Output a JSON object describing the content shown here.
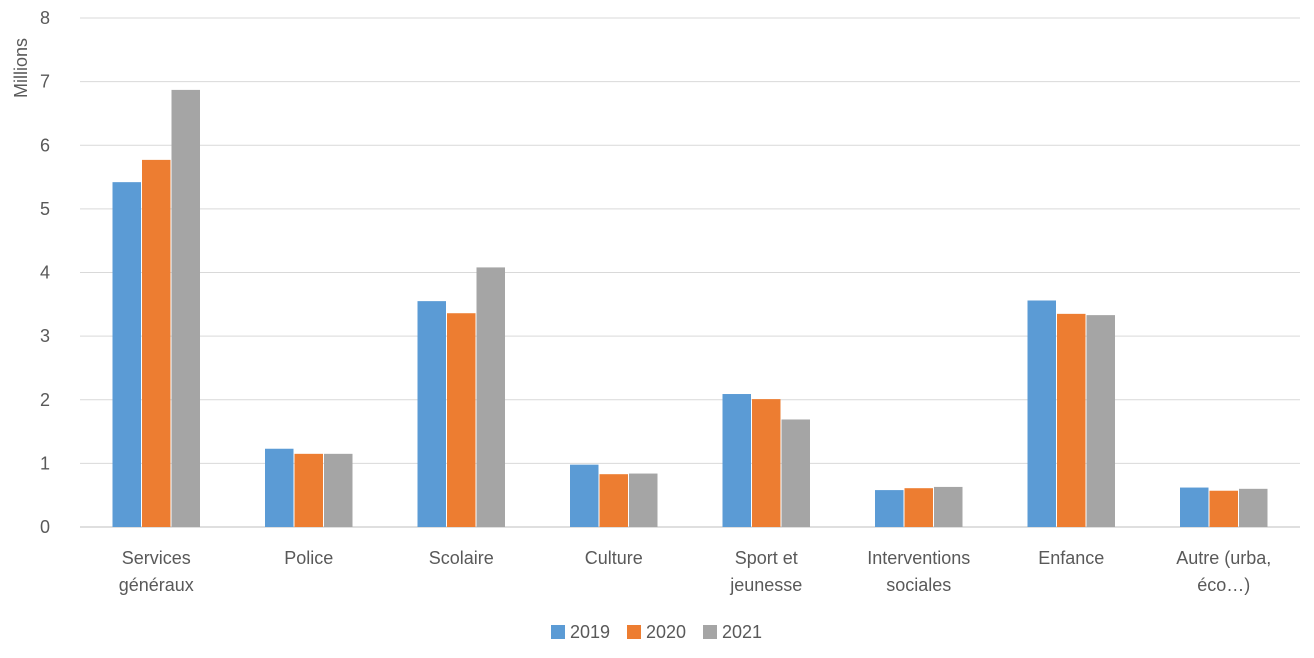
{
  "chart_data": {
    "type": "bar",
    "ylabel": "Millions",
    "ylim": [
      0,
      8
    ],
    "yticks": [
      0,
      1,
      2,
      3,
      4,
      5,
      6,
      7,
      8
    ],
    "grid": true,
    "legend_position": "bottom",
    "categories": [
      [
        "Services",
        "généraux"
      ],
      [
        "Police"
      ],
      [
        "Scolaire"
      ],
      [
        "Culture"
      ],
      [
        "Sport et",
        "jeunesse"
      ],
      [
        "Interventions",
        "sociales"
      ],
      [
        "Enfance"
      ],
      [
        "Autre (urba,",
        "éco…)"
      ]
    ],
    "series": [
      {
        "name": "2019",
        "color": "#5B9BD5",
        "values": [
          5.42,
          1.23,
          3.55,
          0.98,
          2.09,
          0.58,
          3.56,
          0.62
        ]
      },
      {
        "name": "2020",
        "color": "#ED7D31",
        "values": [
          5.77,
          1.15,
          3.36,
          0.83,
          2.01,
          0.61,
          3.35,
          0.57
        ]
      },
      {
        "name": "2021",
        "color": "#A5A5A5",
        "values": [
          6.87,
          1.15,
          4.08,
          0.84,
          1.69,
          0.63,
          3.33,
          0.6
        ]
      }
    ]
  }
}
